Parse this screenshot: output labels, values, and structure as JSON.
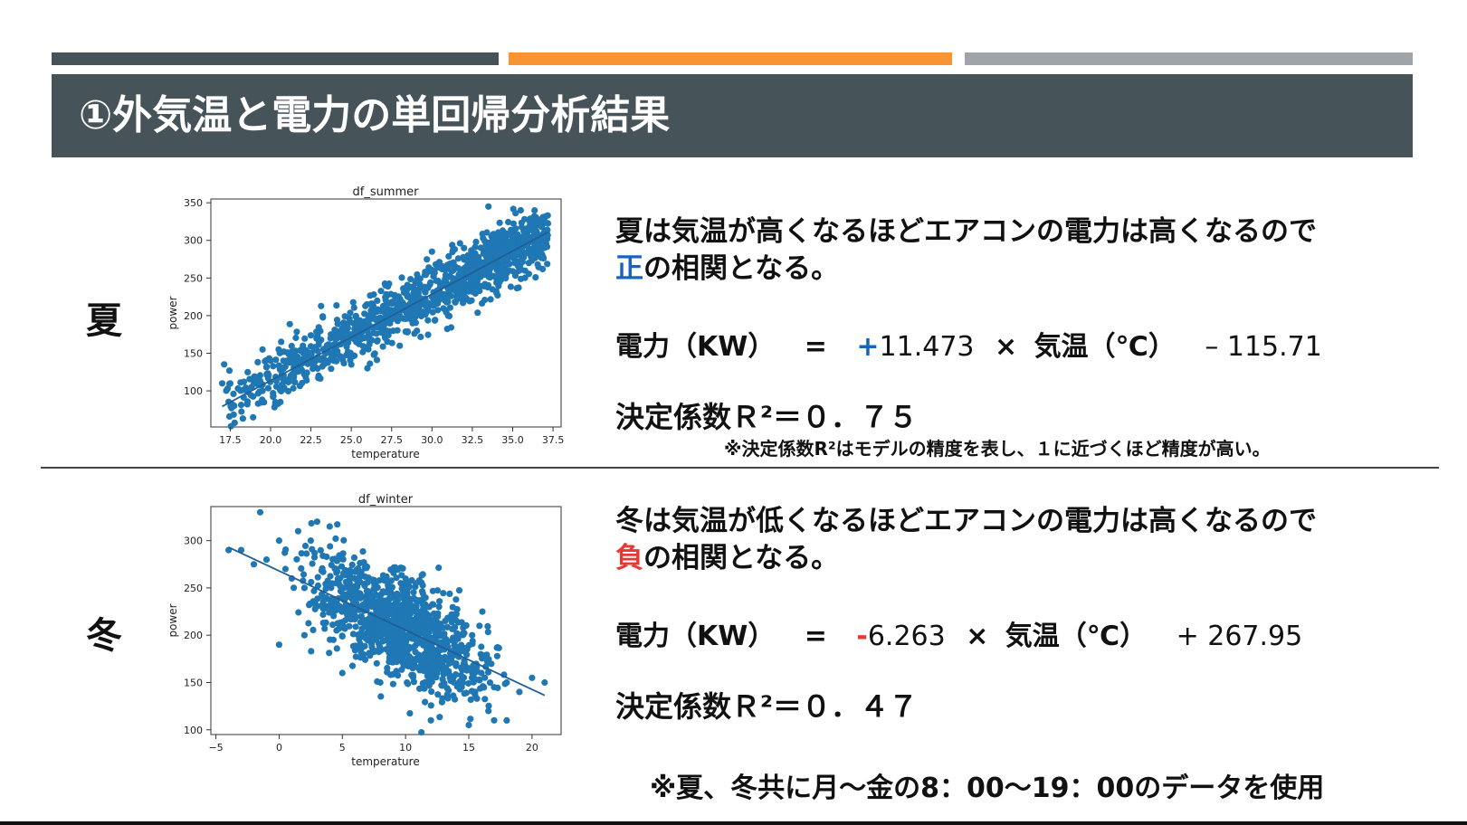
{
  "header": {
    "title": "①外気温と電力の単回帰分析結果",
    "bar_colors": [
      "#465359",
      "#f79433",
      "#a0a3a8"
    ]
  },
  "summer": {
    "season_label": "夏",
    "description_line1": "夏は気温が高くなるほどエアコンの電力は高くなるので",
    "highlight_word": "正",
    "description_line2_rest": "の相関となる。",
    "equation": {
      "lhs": "電力（KW）",
      "equals": "=",
      "sign": "+",
      "coef": "11.473",
      "times": "×",
      "var": "気温（℃）",
      "intercept": "– 115.71"
    },
    "r2": "決定係数Ｒ²＝０．７５",
    "r2_note": "※決定係数R²はモデルの精度を表し、１に近づくほど精度が高い。"
  },
  "winter": {
    "season_label": "冬",
    "description_line1": "冬は気温が低くなるほどエアコンの電力は高くなるので",
    "highlight_word": "負",
    "description_line2_rest": "の相関となる。",
    "equation": {
      "lhs": "電力（KW）",
      "equals": "=",
      "sign": "-",
      "coef": "6.263",
      "times": "×",
      "var": "気温（℃）",
      "intercept": "+ 267.95"
    },
    "r2": "決定係数Ｒ²＝０．４７"
  },
  "footer_note": "※夏、冬共に月～金の8：00～19：00のデータを使用",
  "chart_data": [
    {
      "type": "scatter",
      "title": "df_summer",
      "xlabel": "temperature",
      "ylabel": "power",
      "xlim": [
        16.3,
        38.0
      ],
      "ylim": [
        52,
        355
      ],
      "xticks": [
        "17.5",
        "20.0",
        "22.5",
        "25.0",
        "27.5",
        "30.0",
        "32.5",
        "35.0",
        "37.5"
      ],
      "yticks": [
        "100",
        "150",
        "200",
        "250",
        "300",
        "350"
      ],
      "regression": {
        "slope": 11.473,
        "intercept": -115.71,
        "x_range": [
          17.0,
          37.2
        ]
      },
      "point_color": "#1f77b4",
      "points": [
        [
          17.0,
          110
        ],
        [
          17.5,
          110
        ],
        [
          19.5,
          100
        ],
        [
          19.5,
          155
        ],
        [
          20.0,
          140
        ],
        [
          20.5,
          155
        ],
        [
          21.0,
          140
        ],
        [
          21.5,
          150
        ],
        [
          22.0,
          160
        ],
        [
          22.5,
          145
        ],
        [
          23.0,
          165
        ],
        [
          23.5,
          155
        ],
        [
          24.0,
          170
        ],
        [
          24.5,
          165
        ],
        [
          25.0,
          175
        ],
        [
          25.5,
          170
        ],
        [
          26.0,
          180
        ],
        [
          26.5,
          185
        ],
        [
          27.0,
          190
        ],
        [
          27.5,
          195
        ],
        [
          28.0,
          200
        ],
        [
          28.5,
          205
        ],
        [
          29.0,
          210
        ],
        [
          29.5,
          220
        ],
        [
          30.0,
          225
        ],
        [
          30.5,
          230
        ],
        [
          31.0,
          240
        ],
        [
          31.5,
          245
        ],
        [
          32.0,
          250
        ],
        [
          32.5,
          255
        ],
        [
          33.0,
          265
        ],
        [
          33.5,
          270
        ],
        [
          34.0,
          275
        ],
        [
          34.5,
          285
        ],
        [
          35.0,
          290
        ],
        [
          35.5,
          295
        ],
        [
          36.0,
          305
        ],
        [
          36.5,
          310
        ],
        [
          37.0,
          325
        ],
        [
          33.5,
          345
        ],
        [
          35.5,
          340
        ],
        [
          30.0,
          285
        ],
        [
          25.0,
          135
        ],
        [
          26.0,
          130
        ],
        [
          28.0,
          160
        ],
        [
          31.0,
          200
        ],
        [
          34.0,
          230
        ],
        [
          36.0,
          270
        ]
      ],
      "point_count_note": "dense cloud of roughly 2000 points following the regression line"
    },
    {
      "type": "scatter",
      "title": "df_winter",
      "xlabel": "temperature",
      "ylabel": "power",
      "xlim": [
        -5.4,
        22.3
      ],
      "ylim": [
        95,
        336
      ],
      "xticks": [
        "−5",
        "0",
        "5",
        "10",
        "15",
        "20"
      ],
      "yticks": [
        "100",
        "150",
        "200",
        "250",
        "300"
      ],
      "regression": {
        "slope": -6.263,
        "intercept": 267.95,
        "x_range": [
          -4.0,
          21.0
        ]
      },
      "point_color": "#1f77b4",
      "points": [
        [
          -4.0,
          290
        ],
        [
          -3.0,
          290
        ],
        [
          -2.0,
          275
        ],
        [
          -1.5,
          330
        ],
        [
          -1.0,
          280
        ],
        [
          0.0,
          300
        ],
        [
          0.5,
          270
        ],
        [
          1.0,
          260
        ],
        [
          1.5,
          310
        ],
        [
          2.0,
          250
        ],
        [
          2.5,
          300
        ],
        [
          3.0,
          320
        ],
        [
          3.5,
          240
        ],
        [
          4.0,
          315
        ],
        [
          4.5,
          255
        ],
        [
          5.0,
          240
        ],
        [
          5.5,
          230
        ],
        [
          6.0,
          250
        ],
        [
          6.5,
          220
        ],
        [
          7.0,
          210
        ],
        [
          7.5,
          235
        ],
        [
          8.0,
          200
        ],
        [
          8.5,
          220
        ],
        [
          9.0,
          185
        ],
        [
          9.5,
          205
        ],
        [
          10.0,
          190
        ],
        [
          10.5,
          175
        ],
        [
          11.0,
          200
        ],
        [
          11.5,
          170
        ],
        [
          12.0,
          180
        ],
        [
          12.5,
          160
        ],
        [
          13.0,
          185
        ],
        [
          13.5,
          155
        ],
        [
          14.0,
          170
        ],
        [
          14.5,
          150
        ],
        [
          15.0,
          165
        ],
        [
          15.5,
          140
        ],
        [
          16.0,
          160
        ],
        [
          17.0,
          145
        ],
        [
          18.0,
          150
        ],
        [
          19.0,
          140
        ],
        [
          20.0,
          155
        ],
        [
          21.0,
          150
        ],
        [
          12.0,
          110
        ],
        [
          15.0,
          105
        ],
        [
          17.0,
          110
        ],
        [
          5.0,
          160
        ],
        [
          8.0,
          150
        ],
        [
          0.0,
          190
        ],
        [
          2.0,
          200
        ]
      ],
      "point_count_note": "dense cloud of roughly 2000 points following the regression line"
    }
  ]
}
